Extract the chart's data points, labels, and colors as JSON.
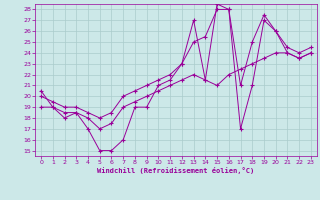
{
  "xlabel": "Windchill (Refroidissement éolien,°C)",
  "bg_color": "#cce8e8",
  "line_color": "#990099",
  "grid_color": "#aacccc",
  "xlim": [
    -0.5,
    23.5
  ],
  "ylim": [
    14.5,
    28.5
  ],
  "xticks": [
    0,
    1,
    2,
    3,
    4,
    5,
    6,
    7,
    8,
    9,
    10,
    11,
    12,
    13,
    14,
    15,
    16,
    17,
    18,
    19,
    20,
    21,
    22,
    23
  ],
  "yticks": [
    15,
    16,
    17,
    18,
    19,
    20,
    21,
    22,
    23,
    24,
    25,
    26,
    27,
    28
  ],
  "line1_x": [
    0,
    1,
    2,
    3,
    4,
    5,
    6,
    7,
    8,
    9,
    10,
    11,
    12,
    13,
    14,
    15,
    16,
    17,
    18,
    19,
    20,
    21,
    22,
    23
  ],
  "line1_y": [
    20.5,
    19.0,
    18.0,
    18.5,
    17.0,
    15.0,
    15.0,
    16.0,
    19.0,
    19.0,
    21.0,
    21.5,
    23.0,
    27.0,
    21.5,
    28.5,
    28.0,
    17.0,
    21.0,
    27.0,
    26.0,
    24.0,
    23.5,
    24.0
  ],
  "line2_x": [
    0,
    1,
    2,
    3,
    4,
    5,
    6,
    7,
    8,
    9,
    10,
    11,
    12,
    13,
    14,
    15,
    16,
    17,
    18,
    19,
    20,
    21,
    22,
    23
  ],
  "line2_y": [
    19.0,
    19.0,
    18.5,
    18.5,
    18.0,
    17.0,
    17.5,
    19.0,
    19.5,
    20.0,
    20.5,
    21.0,
    21.5,
    22.0,
    21.5,
    21.0,
    22.0,
    22.5,
    23.0,
    23.5,
    24.0,
    24.0,
    23.5,
    24.0
  ],
  "line3_x": [
    0,
    1,
    2,
    3,
    4,
    5,
    6,
    7,
    8,
    9,
    10,
    11,
    12,
    13,
    14,
    15,
    16,
    17,
    18,
    19,
    20,
    21,
    22,
    23
  ],
  "line3_y": [
    20.0,
    19.5,
    19.0,
    19.0,
    18.5,
    18.0,
    18.5,
    20.0,
    20.5,
    21.0,
    21.5,
    22.0,
    23.0,
    25.0,
    25.5,
    28.0,
    28.0,
    21.0,
    25.0,
    27.5,
    26.0,
    24.5,
    24.0,
    24.5
  ]
}
